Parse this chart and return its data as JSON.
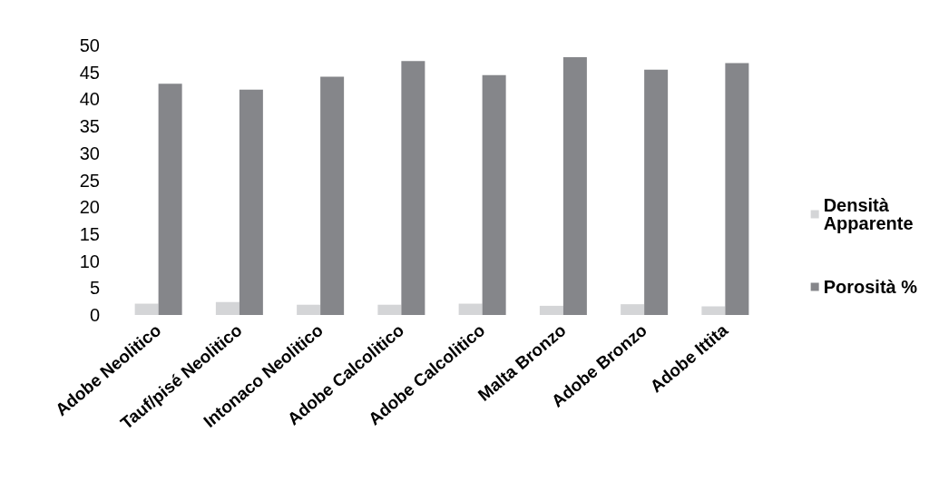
{
  "chart_data": {
    "type": "bar",
    "categories": [
      "Adobe Neolitico",
      "Tauf/pisé Neolitico",
      "Intonaco Neolitico",
      "Adobe Calcolitico",
      "Adobe Calcolitico",
      "Malta Bronzo",
      "Adobe Bronzo",
      "Adobe Ittita"
    ],
    "series": [
      {
        "name": "Densità Apparente",
        "color": "#d4d5d7",
        "values": [
          2.1,
          2.4,
          1.9,
          1.9,
          2.1,
          1.7,
          2.0,
          1.6
        ]
      },
      {
        "name": "Porosità %",
        "color": "#85868a",
        "values": [
          42.9,
          41.8,
          44.2,
          47.1,
          44.5,
          47.8,
          45.5,
          46.7
        ]
      }
    ],
    "ylim": [
      0,
      50
    ],
    "yticks": [
      0,
      5,
      10,
      15,
      20,
      25,
      30,
      35,
      40,
      45,
      50
    ],
    "grid": false,
    "legend": "right"
  }
}
